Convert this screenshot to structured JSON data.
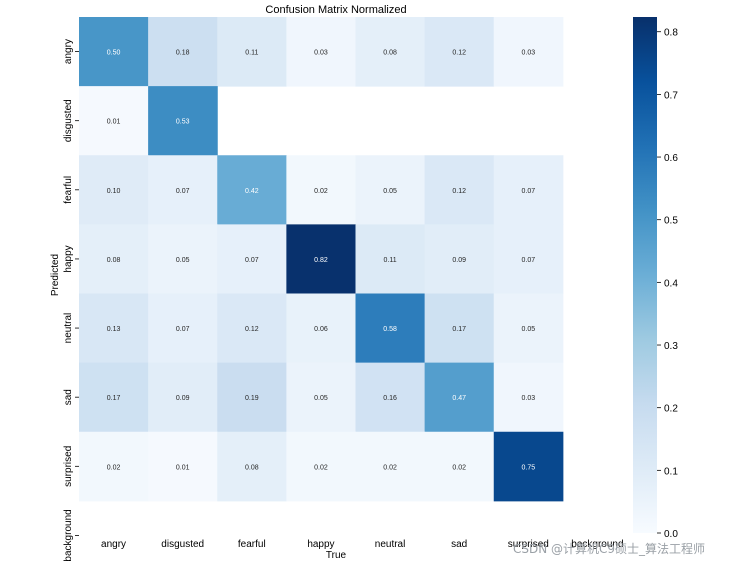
{
  "chart_data": {
    "type": "heatmap",
    "title": "Confusion Matrix Normalized",
    "xlabel": "True",
    "ylabel": "Predicted",
    "x_categories": [
      "angry",
      "disgusted",
      "fearful",
      "happy",
      "neutral",
      "sad",
      "surprised",
      "background"
    ],
    "y_categories": [
      "angry",
      "disgusted",
      "fearful",
      "happy",
      "neutral",
      "sad",
      "surprised",
      "background"
    ],
    "values": [
      [
        0.5,
        0.18,
        0.11,
        0.03,
        0.08,
        0.12,
        0.03,
        null
      ],
      [
        0.01,
        0.53,
        null,
        null,
        null,
        null,
        null,
        null
      ],
      [
        0.1,
        0.07,
        0.42,
        0.02,
        0.05,
        0.12,
        0.07,
        null
      ],
      [
        0.08,
        0.05,
        0.07,
        0.82,
        0.11,
        0.09,
        0.07,
        null
      ],
      [
        0.13,
        0.07,
        0.12,
        0.06,
        0.58,
        0.17,
        0.05,
        null
      ],
      [
        0.17,
        0.09,
        0.19,
        0.05,
        0.16,
        0.47,
        0.03,
        null
      ],
      [
        0.02,
        0.01,
        0.08,
        0.02,
        0.02,
        0.02,
        0.75,
        null
      ],
      [
        null,
        null,
        null,
        null,
        null,
        null,
        null,
        null
      ]
    ],
    "colorbar": {
      "colormap": "Blues",
      "range": [
        0.0,
        0.8235
      ],
      "ticks": [
        0.0,
        0.1,
        0.2,
        0.3,
        0.4,
        0.5,
        0.6,
        0.7,
        0.8
      ],
      "tick_labels": [
        "0.0",
        "0.1",
        "0.2",
        "0.3",
        "0.4",
        "0.5",
        "0.6",
        "0.7",
        "0.8"
      ]
    }
  },
  "watermark": "CSDN @计算机C9硕士_算法工程师"
}
